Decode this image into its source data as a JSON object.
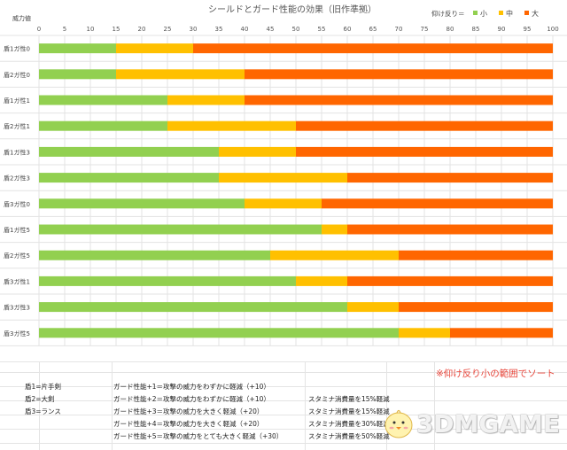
{
  "chart_data": {
    "type": "bar",
    "stacked": true,
    "orientation": "horizontal",
    "title": "シールドとガード性能の効果（旧作準拠）",
    "ylabel": "威力値",
    "xlim": [
      0,
      100
    ],
    "x_ticks": [
      "0",
      "5",
      "10",
      "15",
      "20",
      "25",
      "30",
      "35",
      "40",
      "45",
      "50",
      "55",
      "60",
      "65",
      "70",
      "75",
      "80",
      "85",
      "90",
      "95",
      "100"
    ],
    "grid": true,
    "legend_title": "仰け反り＝",
    "legend_position": "top-right",
    "series": [
      {
        "name": "小",
        "color": "#92d050"
      },
      {
        "name": "中",
        "color": "#ffc000"
      },
      {
        "name": "大",
        "color": "#ff6600"
      }
    ],
    "categories": [
      "盾1ガ性0",
      "盾2ガ性0",
      "盾1ガ性1",
      "盾2ガ性1",
      "盾1ガ性3",
      "盾2ガ性3",
      "盾3ガ性0",
      "盾1ガ性5",
      "盾2ガ性5",
      "盾3ガ性1",
      "盾3ガ性3",
      "盾3ガ性5"
    ],
    "thresholds": [
      [
        15,
        30
      ],
      [
        15,
        40
      ],
      [
        25,
        40
      ],
      [
        25,
        50
      ],
      [
        35,
        50
      ],
      [
        35,
        60
      ],
      [
        40,
        55
      ],
      [
        55,
        60
      ],
      [
        45,
        70
      ],
      [
        50,
        60
      ],
      [
        60,
        70
      ],
      [
        70,
        80
      ]
    ]
  },
  "notes": {
    "shields": [
      "盾1=片手剣",
      "盾2=大剣",
      "盾3=ランス"
    ],
    "guard": [
      "ガード性能+1＝攻撃の威力をわずかに軽減（+10）",
      "ガード性能+2＝攻撃の威力をわずかに軽減（+10）",
      "ガード性能+3＝攻撃の威力を大きく軽減（+20）",
      "ガード性能+4＝攻撃の威力を大きく軽減（+20）",
      "ガード性能+5＝攻撃の威力をとても大きく軽減（+30）"
    ],
    "stamina": [
      "",
      "",
      "スタミナ消費量を15%軽減",
      "スタミナ消費量を15%軽減",
      "スタミナ消費量を30%軽減",
      "スタミナ消費量を50%軽減"
    ],
    "sort_note": "※仰け反り小の範囲でソート"
  },
  "watermark": "3DMGAME"
}
